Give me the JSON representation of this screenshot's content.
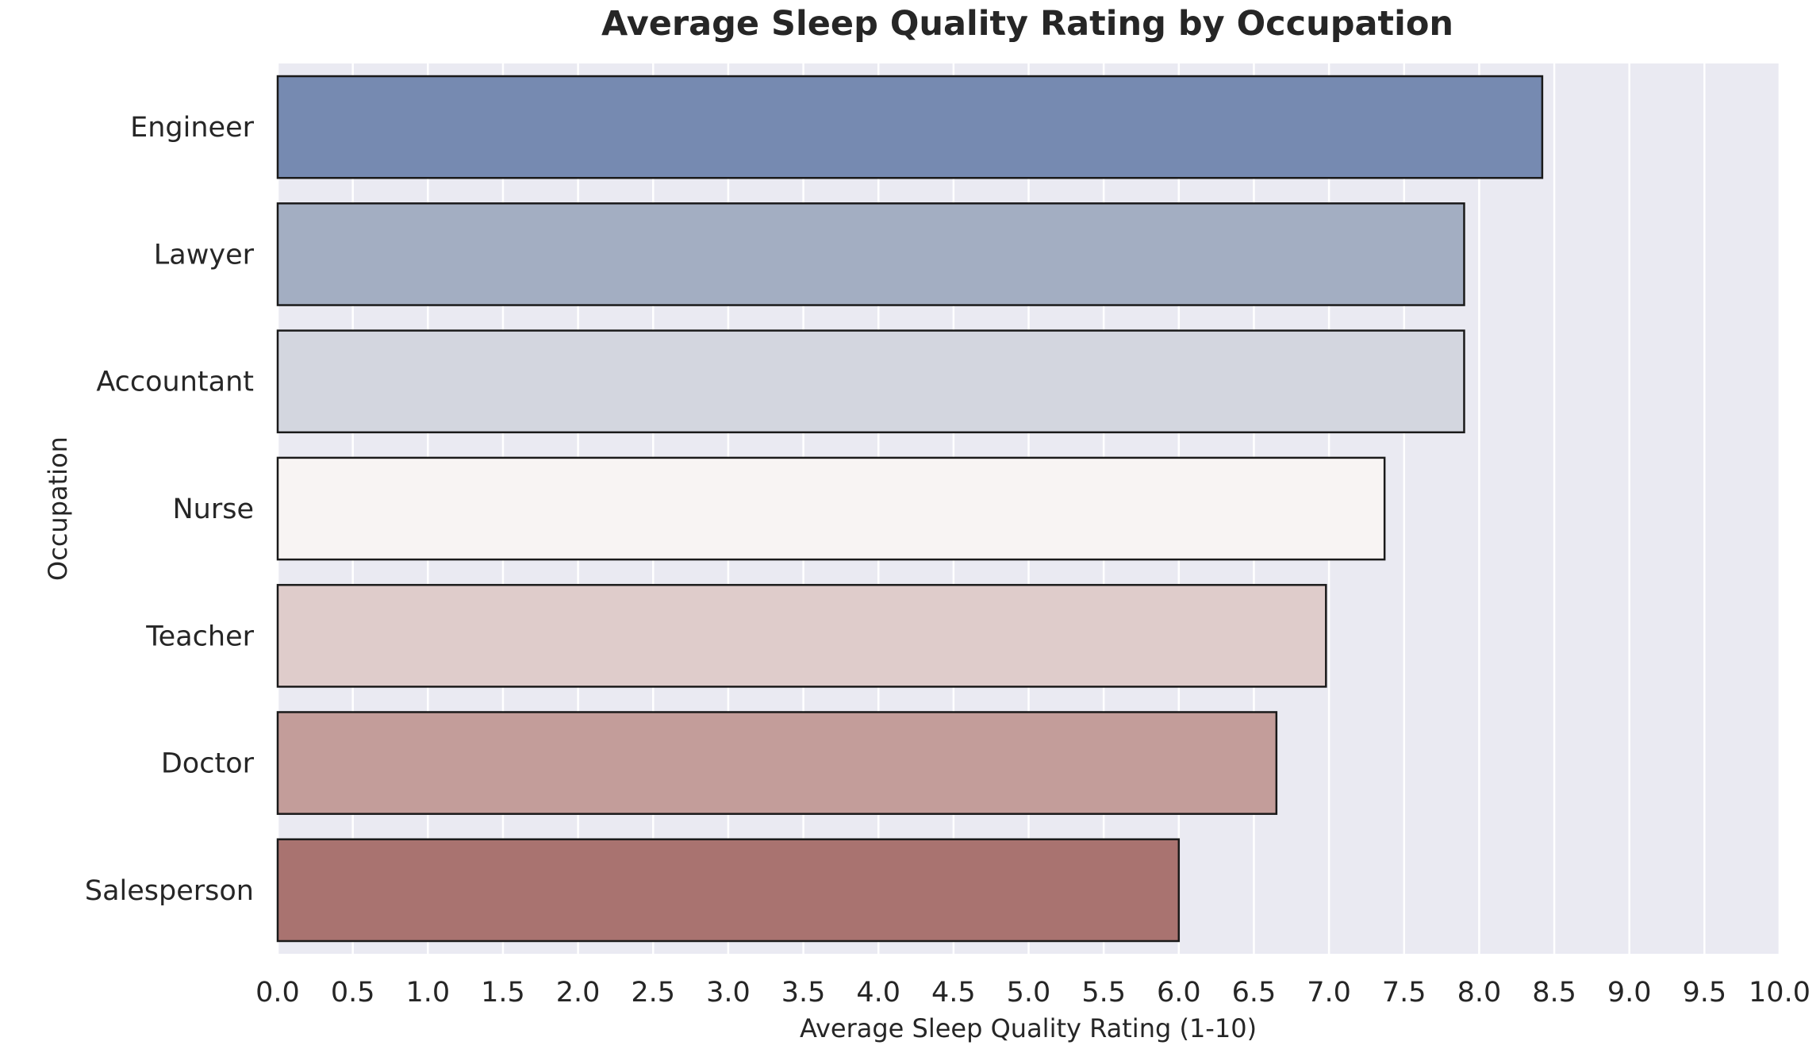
{
  "chart_data": {
    "type": "bar",
    "orientation": "horizontal",
    "title": "Average Sleep Quality Rating by Occupation",
    "xlabel": "Average Sleep Quality Rating (1-10)",
    "ylabel": "Occupation",
    "xlim": [
      0,
      10
    ],
    "xticks": [
      "0.0",
      "0.5",
      "1.0",
      "1.5",
      "2.0",
      "2.5",
      "3.0",
      "3.5",
      "4.0",
      "4.5",
      "5.0",
      "5.5",
      "6.0",
      "6.5",
      "7.0",
      "7.5",
      "8.0",
      "8.5",
      "9.0",
      "9.5",
      "10.0"
    ],
    "grid": true,
    "categories": [
      "Engineer",
      "Lawyer",
      "Accountant",
      "Nurse",
      "Teacher",
      "Doctor",
      "Salesperson"
    ],
    "values": [
      8.42,
      7.9,
      7.9,
      7.37,
      6.98,
      6.65,
      6.0
    ],
    "colors": [
      "#768ab1",
      "#a3aec2",
      "#d3d6df",
      "#f8f4f3",
      "#dfcccb",
      "#c39d9a",
      "#a97370"
    ]
  }
}
